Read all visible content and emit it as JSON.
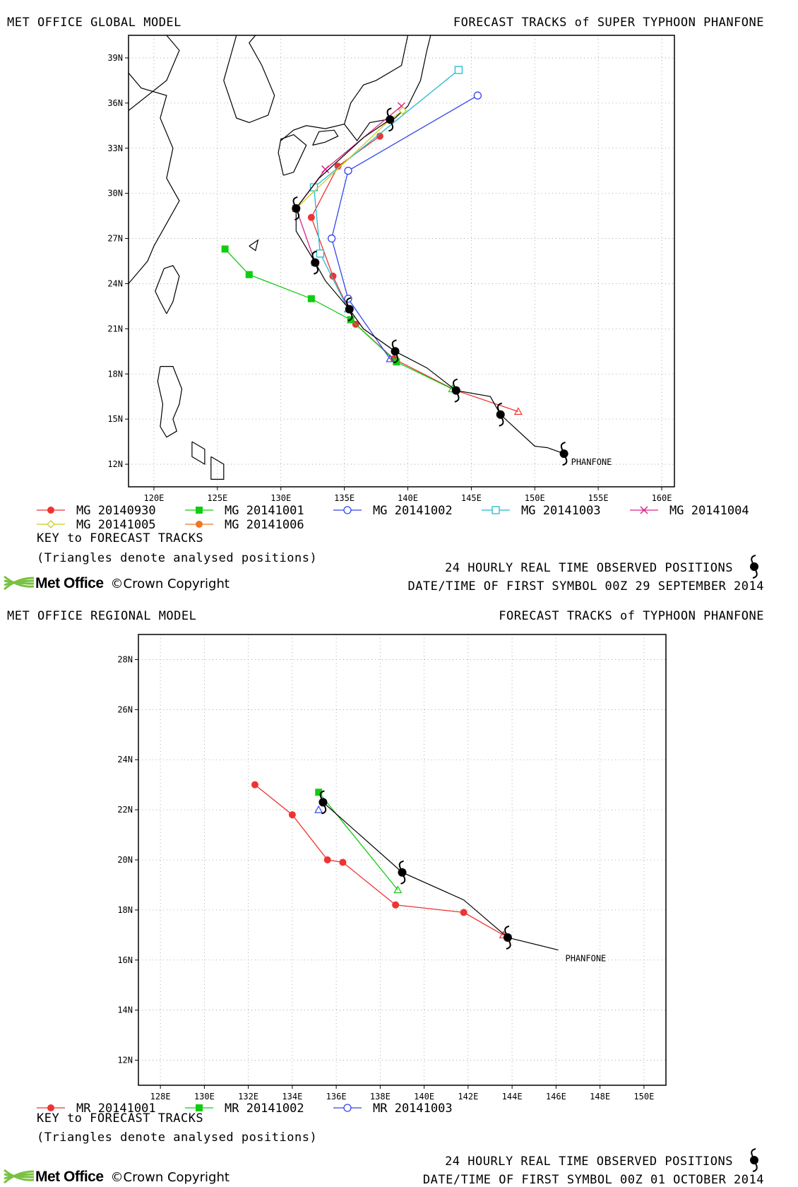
{
  "panels": [
    {
      "id": "global",
      "model_title": "MET OFFICE GLOBAL MODEL",
      "forecast_title": "FORECAST TRACKS of SUPER TYPHOON PHANFONE",
      "storm_label": "PHANFONE",
      "key_title": "KEY to FORECAST TRACKS",
      "triangle_note": "(Triangles denote analysed positions)",
      "observed_note": "24 HOURLY REAL TIME OBSERVED POSITIONS",
      "first_symbol": "DATE/TIME OF FIRST SYMBOL 00Z 29 SEPTEMBER 2014",
      "logo": "Met Office",
      "copyright": "©Crown Copyright"
    },
    {
      "id": "regional",
      "model_title": "MET OFFICE REGIONAL MODEL",
      "forecast_title": "FORECAST TRACKS of TYPHOON PHANFONE",
      "storm_label": "PHANFONE",
      "key_title": "KEY to FORECAST TRACKS",
      "triangle_note": "(Triangles denote analysed positions)",
      "observed_note": "24 HOURLY REAL TIME OBSERVED POSITIONS",
      "first_symbol": "DATE/TIME OF FIRST SYMBOL 00Z 01 OCTOBER 2014",
      "logo": "Met Office",
      "copyright": "©Crown Copyright"
    }
  ],
  "chart_data": [
    {
      "type": "map-tracks",
      "x_range_lon": [
        118,
        161
      ],
      "y_range_lat": [
        10.5,
        40.5
      ],
      "x_ticks": [
        "120E",
        "125E",
        "130E",
        "135E",
        "140E",
        "145E",
        "150E",
        "155E",
        "160E"
      ],
      "y_ticks": [
        "12N",
        "15N",
        "18N",
        "21N",
        "24N",
        "27N",
        "30N",
        "33N",
        "36N",
        "39N"
      ],
      "grid": true,
      "observed_track": [
        [
          152.3,
          12.7
        ],
        [
          151.0,
          13.1
        ],
        [
          150.0,
          13.2
        ],
        [
          147.3,
          15.3
        ],
        [
          146.5,
          16.5
        ],
        [
          143.8,
          16.9
        ],
        [
          141.5,
          18.4
        ],
        [
          139.0,
          19.5
        ],
        [
          136.5,
          21.0
        ],
        [
          135.4,
          22.3
        ],
        [
          133.5,
          24.2
        ],
        [
          132.7,
          25.4
        ],
        [
          131.2,
          27.5
        ],
        [
          131.2,
          29.0
        ],
        [
          133.0,
          31.0
        ],
        [
          136.5,
          33.7
        ],
        [
          138.6,
          34.9
        ]
      ],
      "observed_symbols": [
        [
          152.3,
          12.7
        ],
        [
          147.3,
          15.3
        ],
        [
          143.8,
          16.9
        ],
        [
          139.0,
          19.5
        ],
        [
          135.4,
          22.3
        ],
        [
          132.7,
          25.4
        ],
        [
          131.2,
          29.0
        ],
        [
          138.6,
          34.9
        ]
      ],
      "series": [
        {
          "name": "MG 20140930",
          "color": "#ee3333",
          "marker": "dot",
          "analysed": [
            148.7,
            15.5
          ],
          "track": [
            [
              143.8,
              16.9
            ],
            [
              138.9,
              19.0
            ],
            [
              135.9,
              21.3
            ],
            [
              134.1,
              24.5
            ],
            [
              132.4,
              28.4
            ],
            [
              134.5,
              31.8
            ],
            [
              137.8,
              33.8
            ]
          ]
        },
        {
          "name": "MG 20141001",
          "color": "#11cc11",
          "marker": "square",
          "analysed": [
            143.5,
            17.0
          ],
          "track": [
            [
              139.1,
              18.8
            ],
            [
              135.5,
              21.6
            ],
            [
              132.4,
              23.0
            ],
            [
              127.5,
              24.6
            ],
            [
              125.6,
              26.3
            ]
          ]
        },
        {
          "name": "MG 20141002",
          "color": "#3344ee",
          "marker": "circle",
          "analysed": [
            138.6,
            19.0
          ],
          "track": [
            [
              135.3,
              23.0
            ],
            [
              134.0,
              27.0
            ],
            [
              135.3,
              31.5
            ],
            [
              145.5,
              36.5
            ]
          ]
        },
        {
          "name": "MG 20141003",
          "color": "#22bbcc",
          "marker": "square-open",
          "analysed": [
            135.3,
            22.3
          ],
          "track": [
            [
              133.1,
              26.0
            ],
            [
              132.6,
              30.4
            ],
            [
              144.0,
              38.2
            ]
          ]
        },
        {
          "name": "MG 20141004",
          "color": "#dd2288",
          "marker": "cross",
          "analysed": [
            132.7,
            25.4
          ],
          "track": [
            [
              131.2,
              29.0
            ],
            [
              133.5,
              31.6
            ],
            [
              139.5,
              35.8
            ]
          ]
        },
        {
          "name": "MG 20141005",
          "color": "#cccc22",
          "marker": "diamond",
          "analysed": [
            131.2,
            29.0
          ],
          "track": [
            [
              138.6,
              34.9
            ],
            [
              139.6,
              35.5
            ]
          ]
        },
        {
          "name": "MG 20141006",
          "color": "#ee7722",
          "marker": "dot",
          "analysed": [
            138.6,
            34.9
          ],
          "track": []
        }
      ]
    },
    {
      "type": "map-tracks",
      "x_range_lon": [
        127,
        151
      ],
      "y_range_lat": [
        11,
        29
      ],
      "x_ticks": [
        "128E",
        "130E",
        "132E",
        "134E",
        "136E",
        "138E",
        "140E",
        "142E",
        "144E",
        "146E",
        "148E",
        "150E"
      ],
      "y_ticks": [
        "12N",
        "14N",
        "16N",
        "18N",
        "20N",
        "22N",
        "24N",
        "26N",
        "28N"
      ],
      "grid": true,
      "observed_track": [
        [
          146.1,
          16.4
        ],
        [
          143.8,
          16.9
        ],
        [
          141.8,
          18.4
        ],
        [
          139.0,
          19.5
        ],
        [
          135.4,
          22.3
        ]
      ],
      "observed_symbols": [
        [
          143.8,
          16.9
        ],
        [
          139.0,
          19.5
        ],
        [
          135.4,
          22.3
        ]
      ],
      "series": [
        {
          "name": "MR 20141001",
          "color": "#ee3333",
          "marker": "dot",
          "analysed": [
            143.6,
            17.0
          ],
          "track": [
            [
              141.8,
              17.9
            ],
            [
              138.7,
              18.2
            ],
            [
              136.3,
              19.9
            ],
            [
              135.6,
              20.0
            ],
            [
              134.0,
              21.8
            ],
            [
              132.3,
              23.0
            ]
          ]
        },
        {
          "name": "MR 20141002",
          "color": "#11cc11",
          "marker": "square",
          "analysed": [
            138.8,
            18.8
          ],
          "track": [
            [
              135.2,
              22.7
            ]
          ]
        },
        {
          "name": "MR 20141003",
          "color": "#3344ee",
          "marker": "circle",
          "analysed": [
            135.2,
            22.0
          ],
          "track": []
        }
      ]
    }
  ]
}
